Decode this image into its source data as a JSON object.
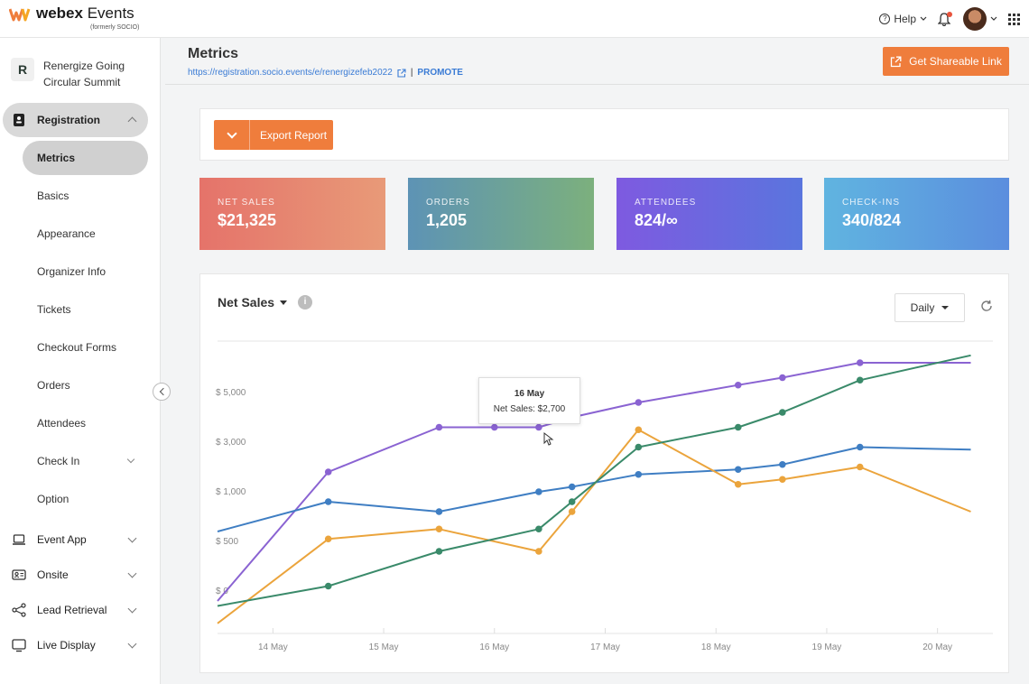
{
  "header": {
    "brand_bold": "webex",
    "brand_rest": " Events",
    "brand_sub": "(formerly SOCIO)",
    "help_label": "Help",
    "help_icon": "?",
    "colors": {
      "brand_orange": "#ef7d3c",
      "notification": "#e8533c"
    }
  },
  "sidebar": {
    "event_logo_letter": "R",
    "event_name": "Renergize Going Circular Summit",
    "sections": [
      {
        "label": "Registration",
        "icon": "registration-icon",
        "expanded": true
      },
      {
        "label": "Event App",
        "icon": "laptop-icon"
      },
      {
        "label": "Onsite",
        "icon": "badge-icon"
      },
      {
        "label": "Lead Retrieval",
        "icon": "share-nodes-icon"
      },
      {
        "label": "Live Display",
        "icon": "monitor-icon"
      }
    ],
    "registration_items": [
      {
        "label": "Metrics",
        "active": true
      },
      {
        "label": "Basics"
      },
      {
        "label": "Appearance"
      },
      {
        "label": "Organizer Info"
      },
      {
        "label": "Tickets"
      },
      {
        "label": "Checkout Forms"
      },
      {
        "label": "Orders"
      },
      {
        "label": "Attendees"
      },
      {
        "label": "Check In",
        "has_children": true
      },
      {
        "label": "Option"
      }
    ]
  },
  "page": {
    "title": "Metrics",
    "url": "https://registration.socio.events/e/renergizefeb2022",
    "separator": "|",
    "promote_label": "PROMOTE",
    "share_label": "Get Shareable Link"
  },
  "toolbar": {
    "export_label": "Export Report"
  },
  "stats": [
    {
      "label": "NET SALES",
      "value": "$21,325"
    },
    {
      "label": "ORDERS",
      "value": "1,205"
    },
    {
      "label": "ATTENDEES",
      "value": "824/∞"
    },
    {
      "label": "CHECK-INS",
      "value": "340/824"
    }
  ],
  "chart_panel": {
    "title": "Net Sales",
    "info_icon": "i",
    "period": "Daily",
    "tooltip": {
      "date": "16 May",
      "text": "Net Sales: $2,700"
    }
  },
  "chart_data": {
    "type": "line",
    "y_tick_labels": [
      "$ 0",
      "$ 500",
      "$ 1,000",
      "$ 3,000",
      "$ 5,000"
    ],
    "x_tick_labels": [
      "14 May",
      "15 May",
      "16 May",
      "17 May",
      "18 May",
      "19 May",
      "20 May"
    ],
    "x_range": [
      13.5,
      20.5
    ],
    "note_y_scale": "non-linear; values expressed as tick-index positions (0 = $0, 1 = $500, 2 = $1,000, 3 = $3,000, 4 = $5,000)",
    "series": [
      {
        "color": "#8a63d2",
        "x": [
          13.5,
          14.5,
          15.5,
          16.0,
          16.4,
          16.7,
          17.3,
          18.2,
          18.6,
          19.3,
          20.3
        ],
        "y": [
          -0.2,
          2.4,
          3.3,
          3.3,
          3.3,
          3.5,
          3.8,
          4.15,
          4.3,
          4.6,
          4.6
        ]
      },
      {
        "color": "#3f7ec3",
        "x": [
          13.5,
          14.5,
          15.5,
          16.4,
          16.7,
          17.3,
          18.2,
          18.6,
          19.3,
          20.3
        ],
        "y": [
          1.2,
          1.8,
          1.6,
          2.0,
          2.1,
          2.35,
          2.45,
          2.55,
          2.9,
          2.85
        ]
      },
      {
        "color": "#eba43c",
        "x": [
          13.5,
          14.5,
          15.5,
          16.4,
          16.7,
          17.3,
          18.2,
          18.6,
          19.3,
          20.3
        ],
        "y": [
          -0.65,
          1.05,
          1.25,
          0.8,
          1.6,
          3.25,
          2.15,
          2.25,
          2.5,
          1.6
        ]
      },
      {
        "color": "#3a8a6a",
        "x": [
          13.5,
          14.5,
          15.5,
          16.4,
          16.7,
          17.3,
          18.2,
          18.6,
          19.3,
          20.3
        ],
        "y": [
          -0.3,
          0.1,
          0.8,
          1.25,
          1.8,
          2.9,
          3.3,
          3.6,
          4.25,
          4.75
        ]
      }
    ]
  }
}
